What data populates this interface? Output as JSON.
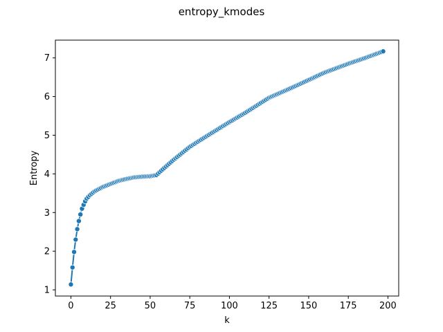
{
  "chart_data": {
    "type": "line",
    "title": "entropy_kmodes",
    "xlabel": "k",
    "ylabel": "Entropy",
    "xlim": [
      -9.8,
      206.8
    ],
    "ylim": [
      0.84,
      7.46
    ],
    "xticks": [
      0,
      25,
      50,
      75,
      100,
      125,
      150,
      175,
      200
    ],
    "yticks": [
      1,
      2,
      3,
      4,
      5,
      6,
      7
    ],
    "grid": false,
    "legend": "none",
    "marker": "circle",
    "color": "#1f77b4",
    "anchors": [
      [
        0,
        1.14
      ],
      [
        1,
        1.58
      ],
      [
        2,
        1.98
      ],
      [
        3,
        2.3
      ],
      [
        4,
        2.57
      ],
      [
        5,
        2.78
      ],
      [
        6,
        2.95
      ],
      [
        7,
        3.1
      ],
      [
        8,
        3.2
      ],
      [
        9,
        3.29
      ],
      [
        10,
        3.36
      ],
      [
        12,
        3.45
      ],
      [
        15,
        3.55
      ],
      [
        20,
        3.66
      ],
      [
        25,
        3.74
      ],
      [
        30,
        3.82
      ],
      [
        35,
        3.87
      ],
      [
        40,
        3.91
      ],
      [
        45,
        3.93
      ],
      [
        50,
        3.94
      ],
      [
        54,
        3.97
      ],
      [
        58,
        4.12
      ],
      [
        65,
        4.37
      ],
      [
        75,
        4.7
      ],
      [
        85,
        4.96
      ],
      [
        100,
        5.34
      ],
      [
        110,
        5.58
      ],
      [
        125,
        5.97
      ],
      [
        140,
        6.24
      ],
      [
        150,
        6.43
      ],
      [
        160,
        6.62
      ],
      [
        175,
        6.85
      ],
      [
        185,
        6.99
      ],
      [
        197,
        7.17
      ]
    ]
  }
}
